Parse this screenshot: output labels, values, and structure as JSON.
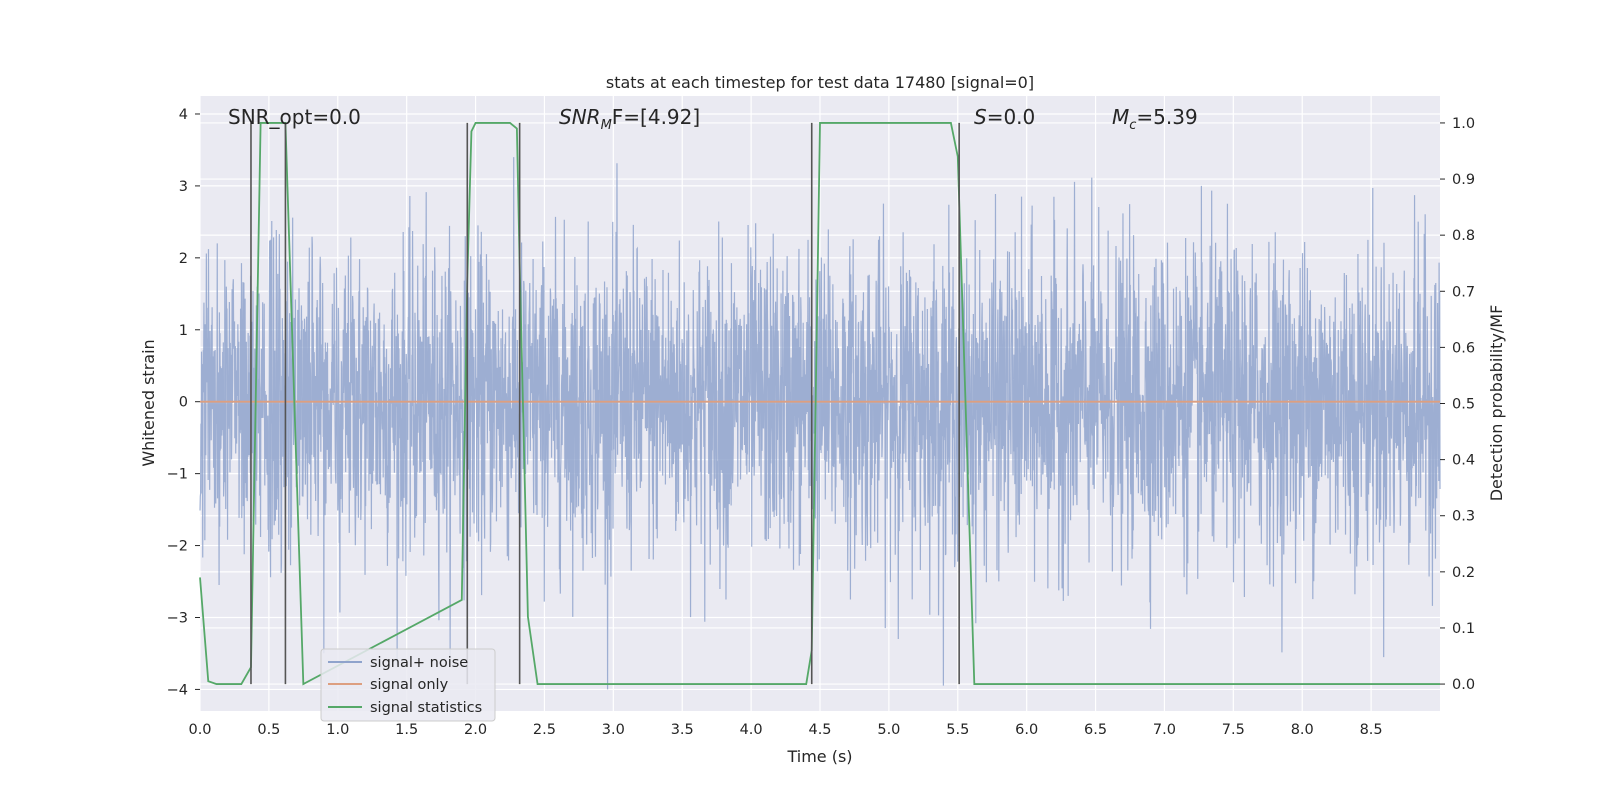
{
  "chart_data": {
    "type": "line",
    "title": "stats at each timestep for test data 17480 [signal=0]",
    "xlabel": "Time (s)",
    "ylabel_left": "Whitened strain",
    "ylabel_right": "Detection probability/MF",
    "xlim": [
      0,
      9
    ],
    "ylim_left": [
      -4.3,
      4.25
    ],
    "ylim_right": [
      -0.048,
      1.048
    ],
    "x_ticks": [
      0.0,
      0.5,
      1.0,
      1.5,
      2.0,
      2.5,
      3.0,
      3.5,
      4.0,
      4.5,
      5.0,
      5.5,
      6.0,
      6.5,
      7.0,
      7.5,
      8.0,
      8.5
    ],
    "x_tick_labels": [
      "0.0",
      "0.5",
      "1.0",
      "1.5",
      "2.0",
      "2.5",
      "3.0",
      "3.5",
      "4.0",
      "4.5",
      "5.0",
      "5.5",
      "6.0",
      "6.5",
      "7.0",
      "7.5",
      "8.0",
      "8.5"
    ],
    "y_left_ticks": [
      -4,
      -3,
      -2,
      -1,
      0,
      1,
      2,
      3,
      4
    ],
    "y_left_tick_labels": [
      "−4",
      "−3",
      "−2",
      "−1",
      "0",
      "1",
      "2",
      "3",
      "4"
    ],
    "y_right_ticks": [
      0.0,
      0.1,
      0.2,
      0.3,
      0.4,
      0.5,
      0.6,
      0.7,
      0.8,
      0.9,
      1.0
    ],
    "y_right_tick_labels": [
      "0.0",
      "0.1",
      "0.2",
      "0.3",
      "0.4",
      "0.5",
      "0.6",
      "0.7",
      "0.8",
      "0.9",
      "1.0"
    ],
    "grid": true,
    "legend_position": "bottom-left",
    "annotations": {
      "snr_opt": "SNR_opt=0.0",
      "snr_mf_main": "SNR",
      "snr_mf_sub": "M",
      "snr_mf_rest": "F=[4.92]",
      "s_main": "S",
      "s_rest": "=0.0",
      "mc_main": "M",
      "mc_sub": "c",
      "mc_rest": "=5.39"
    },
    "vertical_markers": [
      0.37,
      0.62,
      1.94,
      2.32,
      4.44,
      5.51
    ],
    "series": [
      {
        "name": "signal+ noise",
        "color": "#8fa3cc",
        "kind": "noise",
        "approx_range": [
          -4.0,
          3.4
        ],
        "n_samples": 4096
      },
      {
        "name": "signal only",
        "color": "#dd9f80",
        "x": [
          0,
          9
        ],
        "y": [
          0,
          0
        ]
      },
      {
        "name": "signal statistics",
        "color": "#55a868",
        "axis": "right",
        "x": [
          0.0,
          0.06,
          0.12,
          0.3,
          0.37,
          0.44,
          0.55,
          0.62,
          0.75,
          1.9,
          1.94,
          1.97,
          2.0,
          2.06,
          2.25,
          2.3,
          2.32,
          2.38,
          2.45,
          4.4,
          4.44,
          4.5,
          5.45,
          5.5,
          5.55,
          5.62,
          9.0
        ],
        "y": [
          0.19,
          0.005,
          0.0,
          0.0,
          0.03,
          1.0,
          1.0,
          1.0,
          0.0,
          0.15,
          0.72,
          0.985,
          1.0,
          1.0,
          1.0,
          0.99,
          0.75,
          0.12,
          0.0,
          0.0,
          0.06,
          1.0,
          1.0,
          0.94,
          0.55,
          0.0,
          0.0
        ]
      }
    ]
  }
}
